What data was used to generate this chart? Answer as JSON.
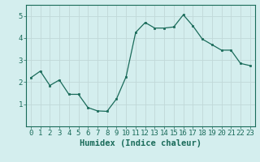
{
  "x": [
    0,
    1,
    2,
    3,
    4,
    5,
    6,
    7,
    8,
    9,
    10,
    11,
    12,
    13,
    14,
    15,
    16,
    17,
    18,
    19,
    20,
    21,
    22,
    23
  ],
  "y": [
    2.2,
    2.5,
    1.85,
    2.1,
    1.45,
    1.45,
    0.85,
    0.7,
    0.68,
    1.25,
    2.25,
    4.25,
    4.7,
    4.45,
    4.45,
    4.5,
    5.05,
    4.55,
    3.95,
    3.7,
    3.45,
    3.45,
    2.85,
    2.75
  ],
  "line_color": "#1a6b5a",
  "marker_color": "#1a6b5a",
  "bg_color": "#d4eeee",
  "grid_color": "#c0d8d8",
  "xlabel": "Humidex (Indice chaleur)",
  "ylim": [
    0,
    5.5
  ],
  "xlim": [
    -0.5,
    23.5
  ],
  "yticks": [
    1,
    2,
    3,
    4,
    5
  ],
  "xticks": [
    0,
    1,
    2,
    3,
    4,
    5,
    6,
    7,
    8,
    9,
    10,
    11,
    12,
    13,
    14,
    15,
    16,
    17,
    18,
    19,
    20,
    21,
    22,
    23
  ],
  "tick_label_fontsize": 6.5,
  "xlabel_fontsize": 7.5
}
